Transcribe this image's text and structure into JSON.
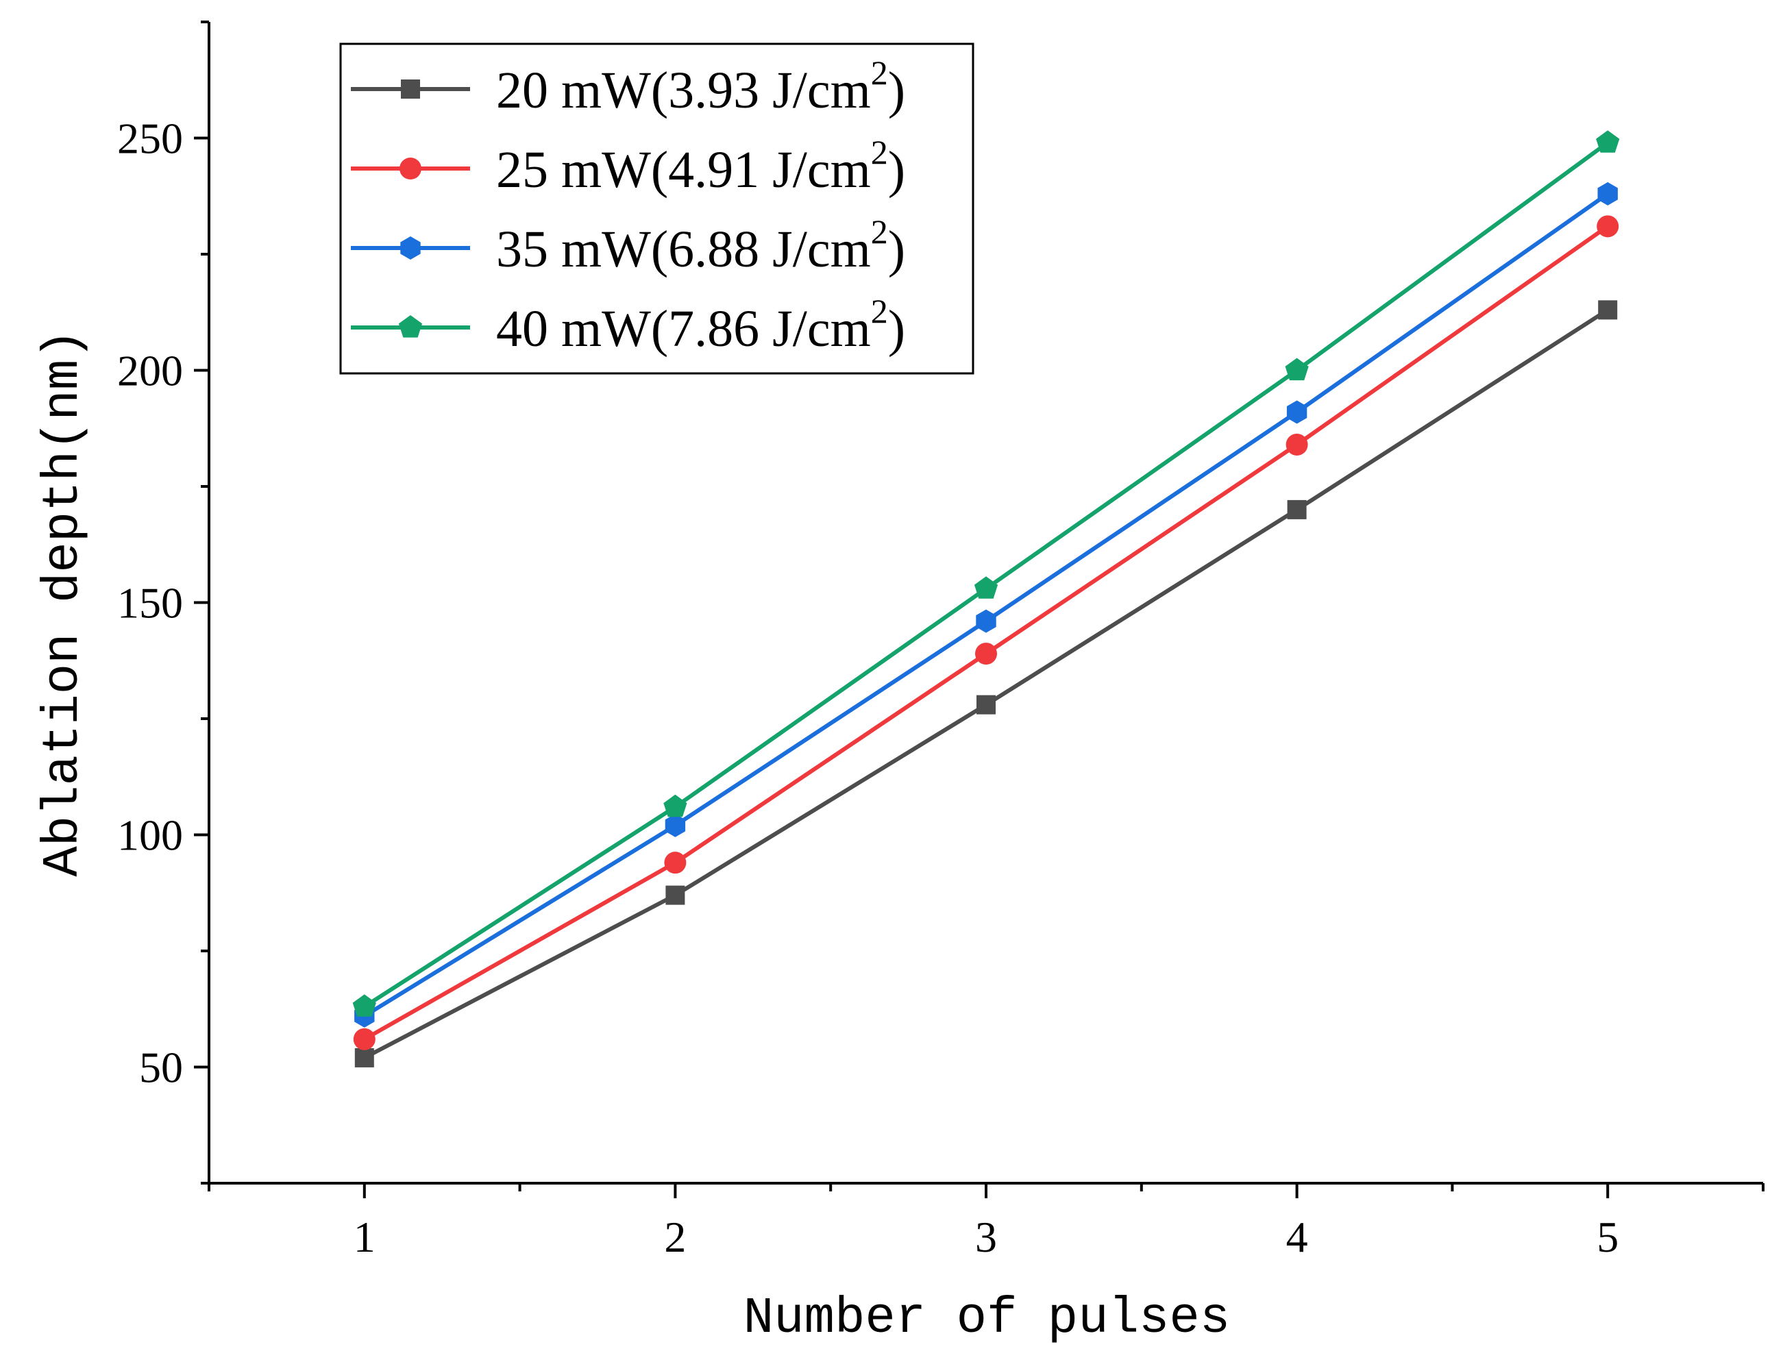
{
  "chart_data": {
    "type": "line",
    "title": "",
    "xlabel": "Number of pulses",
    "ylabel": "Ablation depth(nm)",
    "x": [
      1,
      2,
      3,
      4,
      5
    ],
    "xlim": [
      0.5,
      5.5
    ],
    "ylim": [
      25,
      275
    ],
    "x_ticks": [
      "1",
      "2",
      "3",
      "4",
      "5"
    ],
    "y_ticks": [
      "50",
      "100",
      "150",
      "200",
      "250"
    ],
    "grid": false,
    "legend_position": "top-left",
    "series": [
      {
        "name": "20 mW(3.93 J/cm",
        "name_sup": "2",
        "name_close": ")",
        "color": "#4d4d4d",
        "marker": "square",
        "values": [
          52,
          87,
          128,
          170,
          213
        ]
      },
      {
        "name": "25 mW(4.91 J/cm",
        "name_sup": "2",
        "name_close": ")",
        "color": "#f0393c",
        "marker": "circle",
        "values": [
          56,
          94,
          139,
          184,
          231
        ]
      },
      {
        "name": "35 mW(6.88 J/cm",
        "name_sup": "2",
        "name_close": ")",
        "color": "#1a6fdc",
        "marker": "hexagon",
        "values": [
          61,
          102,
          146,
          191,
          238
        ]
      },
      {
        "name": "40 mW(7.86 J/cm",
        "name_sup": "2",
        "name_close": ")",
        "color": "#13a36b",
        "marker": "pentagon",
        "values": [
          63,
          106,
          153,
          200,
          249
        ]
      }
    ]
  }
}
